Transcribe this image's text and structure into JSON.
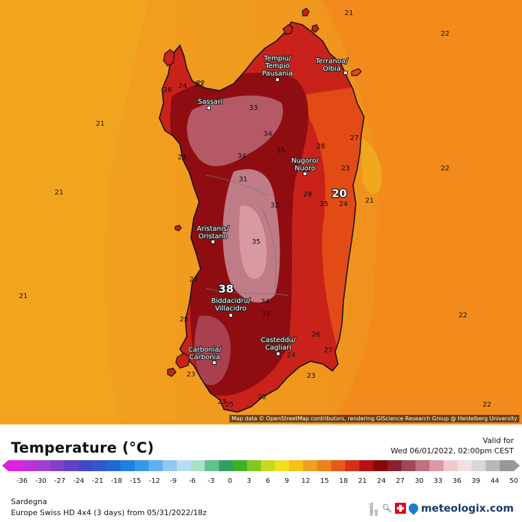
{
  "map": {
    "sea_isotherms": [
      {
        "text": "21"
      },
      {
        "text": "22"
      },
      {
        "text": "22"
      },
      {
        "text": "21"
      },
      {
        "text": "21"
      },
      {
        "text": "22"
      },
      {
        "text": "21"
      },
      {
        "text": "21"
      },
      {
        "text": "22"
      },
      {
        "text": "22"
      }
    ],
    "land_labels": [
      {
        "text": "22"
      },
      {
        "text": "26"
      },
      {
        "text": "24"
      },
      {
        "text": "27"
      },
      {
        "text": "28"
      },
      {
        "text": "33"
      },
      {
        "text": "34"
      },
      {
        "text": "35"
      },
      {
        "text": "34"
      },
      {
        "text": "31"
      },
      {
        "text": "32"
      },
      {
        "text": "35"
      },
      {
        "text": "28"
      },
      {
        "text": "26"
      },
      {
        "text": "23"
      },
      {
        "text": "23"
      },
      {
        "text": "25"
      },
      {
        "text": "24"
      },
      {
        "text": "22"
      },
      {
        "text": "34"
      },
      {
        "text": "33"
      },
      {
        "text": "26"
      },
      {
        "text": "24"
      },
      {
        "text": "27"
      },
      {
        "text": "23"
      },
      {
        "text": "22"
      },
      {
        "text": "25"
      },
      {
        "text": "23"
      },
      {
        "text": "25"
      },
      {
        "text": "23"
      }
    ],
    "extremes": [
      {
        "text": "38",
        "kind": "max"
      },
      {
        "text": "20",
        "kind": "min"
      }
    ],
    "cities": [
      {
        "name": "Tempiu/\nTempio\nPausania"
      },
      {
        "name": "Terranoa/\nOlbia"
      },
      {
        "name": "Sassari"
      },
      {
        "name": "Nugoro/\nNuoro"
      },
      {
        "name": "Aristanis/\nOristano"
      },
      {
        "name": "Biddacidru/\nVillacidro"
      },
      {
        "name": "Casteddu/\nCagliari"
      },
      {
        "name": "Carbonia/\nCarbonia"
      }
    ],
    "attribution": "Map data © OpenStreetMap contributors, rendering GIScience Research Group @ Heidelberg University",
    "colors": {
      "sea_west": "#f0a020",
      "sea_east": "#f28a1e",
      "land_base": "#c8201a",
      "land_hot": "#8e0c10",
      "land_peak": "#c98c8c"
    }
  },
  "legend": {
    "title": "Temperature (°C)",
    "valid_label": "Valid for",
    "valid_date": "Wed 06/01/2022, 02:00pm CEST",
    "ticks": [
      "-36",
      "-30",
      "-27",
      "-24",
      "-21",
      "-18",
      "-15",
      "-12",
      "-9",
      "-6",
      "-3",
      "0",
      "3",
      "6",
      "9",
      "12",
      "15",
      "18",
      "21",
      "24",
      "27",
      "30",
      "33",
      "36",
      "39",
      "44",
      "50"
    ],
    "colors": [
      "#e020e0",
      "#c030d8",
      "#a040d0",
      "#8040c8",
      "#6040c8",
      "#4048c8",
      "#3058d0",
      "#2068d8",
      "#2080e0",
      "#3898e8",
      "#60b0f0",
      "#90c8f0",
      "#b8ddf0",
      "#a8e0c8",
      "#60c090",
      "#30a060",
      "#40b020",
      "#80c820",
      "#c8d820",
      "#f0e020",
      "#f8c018",
      "#f0a020",
      "#f08018",
      "#e85818",
      "#d83018",
      "#b81010",
      "#880808",
      "#8a2030",
      "#a04858",
      "#c07080",
      "#d89aa8",
      "#f0c8d0",
      "#f0e0e0",
      "#d8d8d8",
      "#b8b8b8",
      "#989898"
    ]
  },
  "footer": {
    "region": "Sardegna",
    "model": "Europe Swiss HD 4x4 (3 days) from 05/31/2022/18z",
    "swiss_hd": "SWISS HD",
    "brand": "meteologix.com",
    "search_icon": "magnifier-icon",
    "flag_icon": "swiss-flag-icon",
    "logo_icon": "drop-logo-icon"
  }
}
